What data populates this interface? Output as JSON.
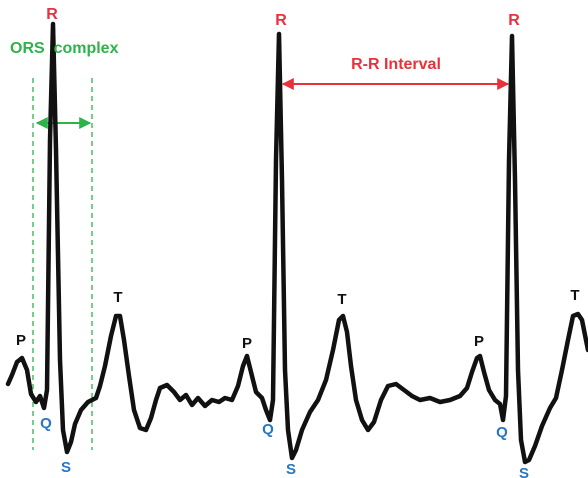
{
  "colors": {
    "trace": "#111111",
    "r_label": "#e8313b",
    "qs_label": "#2777c3",
    "pt_label": "#111111",
    "qrs_annotation": "#2db34a",
    "rr_annotation": "#e8313b"
  },
  "annotations": {
    "qrs_title": "ORS  complex",
    "rr_interval": "R-R Interval"
  },
  "beats": [
    {
      "p": "P",
      "q": "Q",
      "r": "R",
      "s": "S",
      "t": "T"
    },
    {
      "p": "P",
      "q": "Q",
      "r": "R",
      "s": "S",
      "t": "T"
    },
    {
      "p": "P",
      "q": "Q",
      "r": "R",
      "s": "S",
      "t": "T"
    }
  ]
}
